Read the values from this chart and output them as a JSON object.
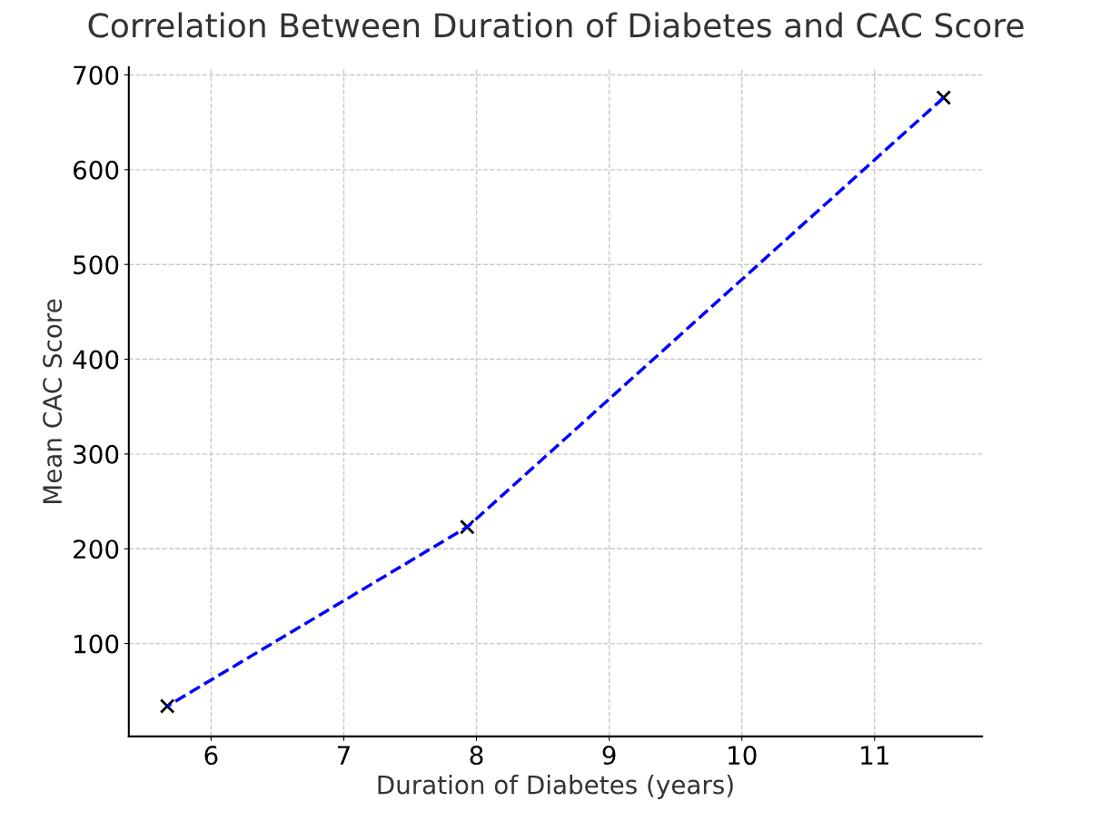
{
  "chart_data": {
    "type": "line",
    "title": "Correlation Between Duration of Diabetes and CAC Score",
    "xlabel": "Duration of Diabetes (years)",
    "ylabel": "Mean CAC Score",
    "x": [
      5.67,
      7.93,
      11.52
    ],
    "series": [
      {
        "color": "#0000ff",
        "values": [
          34,
          223,
          676
        ]
      }
    ],
    "xlim": [
      5.38,
      11.81
    ],
    "xticks": [
      6,
      7,
      8,
      9,
      10,
      11
    ],
    "ylim": [
      2,
      708
    ],
    "yticks": [
      100,
      200,
      300,
      400,
      500,
      600,
      700
    ],
    "grid": true,
    "marker": "cross",
    "line_style": "dashed"
  }
}
